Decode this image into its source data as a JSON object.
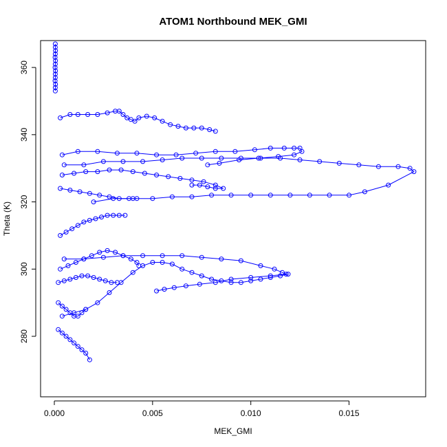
{
  "chart_data": {
    "type": "scatter",
    "title": "ATOM1 Northbound MEK_GMI",
    "xlabel": "MEK_GMI",
    "ylabel": "Theta (K)",
    "xlim": [
      -0.0007,
      0.0189
    ],
    "ylim": [
      262,
      368
    ],
    "x_ticks": [
      0.0,
      0.005,
      0.01,
      0.015
    ],
    "x_tick_labels": [
      "0.000",
      "0.005",
      "0.010",
      "0.015"
    ],
    "y_ticks": [
      280,
      300,
      320,
      340,
      360
    ],
    "y_tick_labels": [
      "280",
      "300",
      "320",
      "340",
      "360"
    ],
    "grid": false,
    "legend": "none",
    "marker": "open-circle",
    "connect_points": true,
    "color": "#0000ff",
    "series": [
      {
        "x": [
          5e-05,
          5e-05,
          6e-05,
          5e-05,
          4e-05,
          6e-05,
          5e-05,
          4e-05,
          6e-05,
          5e-05,
          5e-05,
          4e-05,
          6e-05,
          5e-05,
          5e-05
        ],
        "y": [
          367,
          366,
          365,
          364,
          363,
          362,
          361,
          360,
          359,
          358,
          357,
          356,
          355,
          354,
          353
        ]
      },
      {
        "x": [
          0.0003,
          0.0008,
          0.0012,
          0.0017,
          0.0022,
          0.0027,
          0.0031,
          0.0033,
          0.0035,
          0.0037,
          0.0039,
          0.0041,
          0.0043,
          0.0047,
          0.0051,
          0.0055,
          0.0059,
          0.0063,
          0.0067,
          0.0071,
          0.0075,
          0.0079,
          0.0082
        ],
        "y": [
          345,
          346,
          346,
          346,
          346,
          346.5,
          347,
          347,
          346,
          345,
          344.5,
          344,
          345,
          345.5,
          345,
          344,
          343,
          342.5,
          342,
          342,
          342,
          341.5,
          341
        ]
      },
      {
        "x": [
          0.0004,
          0.0012,
          0.0022,
          0.0032,
          0.0042,
          0.0052,
          0.0062,
          0.0072,
          0.0082,
          0.0092,
          0.0102,
          0.011,
          0.0117,
          0.0122,
          0.0125,
          0.0126,
          0.0122,
          0.0114,
          0.0104,
          0.0094,
          0.0084,
          0.0078
        ],
        "y": [
          334,
          335,
          335,
          334.5,
          334.5,
          334,
          334,
          334.5,
          335,
          335,
          335.5,
          336,
          336,
          336,
          336,
          335,
          334,
          333.5,
          333,
          332.5,
          331.5,
          331
        ]
      },
      {
        "x": [
          0.0005,
          0.0015,
          0.0025,
          0.0035,
          0.0045,
          0.0055,
          0.0065,
          0.0075,
          0.0085,
          0.0095,
          0.0105,
          0.0115,
          0.0125,
          0.0135,
          0.0145,
          0.0155,
          0.0165,
          0.0175,
          0.0181,
          0.0183,
          0.017,
          0.0158,
          0.015,
          0.014,
          0.013,
          0.012,
          0.011,
          0.01,
          0.009,
          0.008,
          0.007,
          0.006,
          0.005,
          0.004,
          0.003,
          0.002
        ],
        "y": [
          331,
          331,
          332,
          332,
          332,
          332.5,
          333,
          333,
          333,
          333,
          333,
          333,
          332.5,
          332,
          331.5,
          331,
          330.5,
          330.5,
          330,
          329,
          325,
          323,
          322,
          322,
          322,
          322,
          322,
          322,
          322,
          322,
          321.5,
          321.5,
          321,
          321,
          321,
          320
        ]
      },
      {
        "x": [
          0.0004,
          0.001,
          0.0016,
          0.0022,
          0.0028,
          0.0034,
          0.004,
          0.0046,
          0.0052,
          0.0058,
          0.0064,
          0.007,
          0.0076,
          0.0082,
          0.0086,
          0.0082,
          0.0078,
          0.0074,
          0.007
        ],
        "y": [
          328,
          328.5,
          329,
          329,
          329.5,
          329.5,
          329,
          328.5,
          328,
          327.5,
          327,
          326.5,
          326,
          325,
          324,
          324,
          324.5,
          325,
          325
        ]
      },
      {
        "x": [
          0.0003,
          0.0008,
          0.0013,
          0.0018,
          0.0023,
          0.0028,
          0.0033,
          0.0038,
          0.0042
        ],
        "y": [
          324,
          323.5,
          323,
          322.5,
          322,
          321.5,
          321,
          321,
          321
        ]
      },
      {
        "x": [
          0.0005,
          0.0015,
          0.0025,
          0.0035,
          0.0045,
          0.0055,
          0.0065,
          0.0075,
          0.0085,
          0.0095,
          0.0105,
          0.0112,
          0.0116,
          0.0118,
          0.011,
          0.01,
          0.009,
          0.0082,
          0.0074,
          0.0067,
          0.0061,
          0.0056,
          0.0052
        ],
        "y": [
          303,
          303,
          303.5,
          304,
          304,
          304,
          304,
          303.5,
          303,
          302.5,
          301,
          300,
          299,
          298.5,
          298,
          297.5,
          297,
          296,
          295.5,
          295,
          294.5,
          294,
          293.5
        ]
      },
      {
        "x": [
          0.0004,
          0.001,
          0.0016,
          0.0022,
          0.0028,
          0.0034,
          0.004,
          0.0045,
          0.005,
          0.0055,
          0.006,
          0.0065,
          0.007,
          0.0075,
          0.008,
          0.0085,
          0.009,
          0.0095,
          0.01,
          0.0105,
          0.011,
          0.0115,
          0.0119
        ],
        "y": [
          286,
          287,
          288,
          290,
          293,
          296,
          299,
          301,
          302,
          302,
          301.5,
          300,
          299,
          298,
          297,
          296.5,
          296,
          296,
          296.5,
          297,
          297.5,
          298,
          298.5
        ]
      },
      {
        "x": [
          0.0003,
          0.0007,
          0.0011,
          0.0015,
          0.0019,
          0.0023,
          0.0027,
          0.0031,
          0.0035,
          0.0039,
          0.0042,
          0.0043
        ],
        "y": [
          300,
          301,
          302,
          303,
          304,
          305,
          305.5,
          305,
          304,
          303,
          302,
          301
        ]
      },
      {
        "x": [
          0.0003,
          0.0006,
          0.0009,
          0.0012,
          0.0015,
          0.0018,
          0.0021,
          0.0024,
          0.0027,
          0.003,
          0.0033,
          0.0036
        ],
        "y": [
          310,
          311,
          312,
          313,
          314,
          314.5,
          315,
          315.5,
          316,
          316,
          316,
          316
        ]
      },
      {
        "x": [
          0.0002,
          0.0005,
          0.0008,
          0.0011,
          0.0014,
          0.0017,
          0.002,
          0.0023,
          0.0026,
          0.0029,
          0.0032
        ],
        "y": [
          296,
          296.5,
          297,
          297.5,
          298,
          298,
          297.5,
          297,
          296.5,
          296,
          296
        ]
      },
      {
        "x": [
          0.0002,
          0.0004,
          0.0006,
          0.0008,
          0.001,
          0.0012,
          0.0014,
          0.0016,
          0.0018
        ],
        "y": [
          282,
          281,
          280,
          279,
          278,
          277,
          276,
          275,
          273
        ]
      },
      {
        "x": [
          0.0002,
          0.0004,
          0.0006,
          0.0008,
          0.001,
          0.0012,
          0.0014,
          0.0016
        ],
        "y": [
          290,
          289,
          288,
          287,
          286,
          286,
          287,
          288
        ]
      }
    ]
  }
}
